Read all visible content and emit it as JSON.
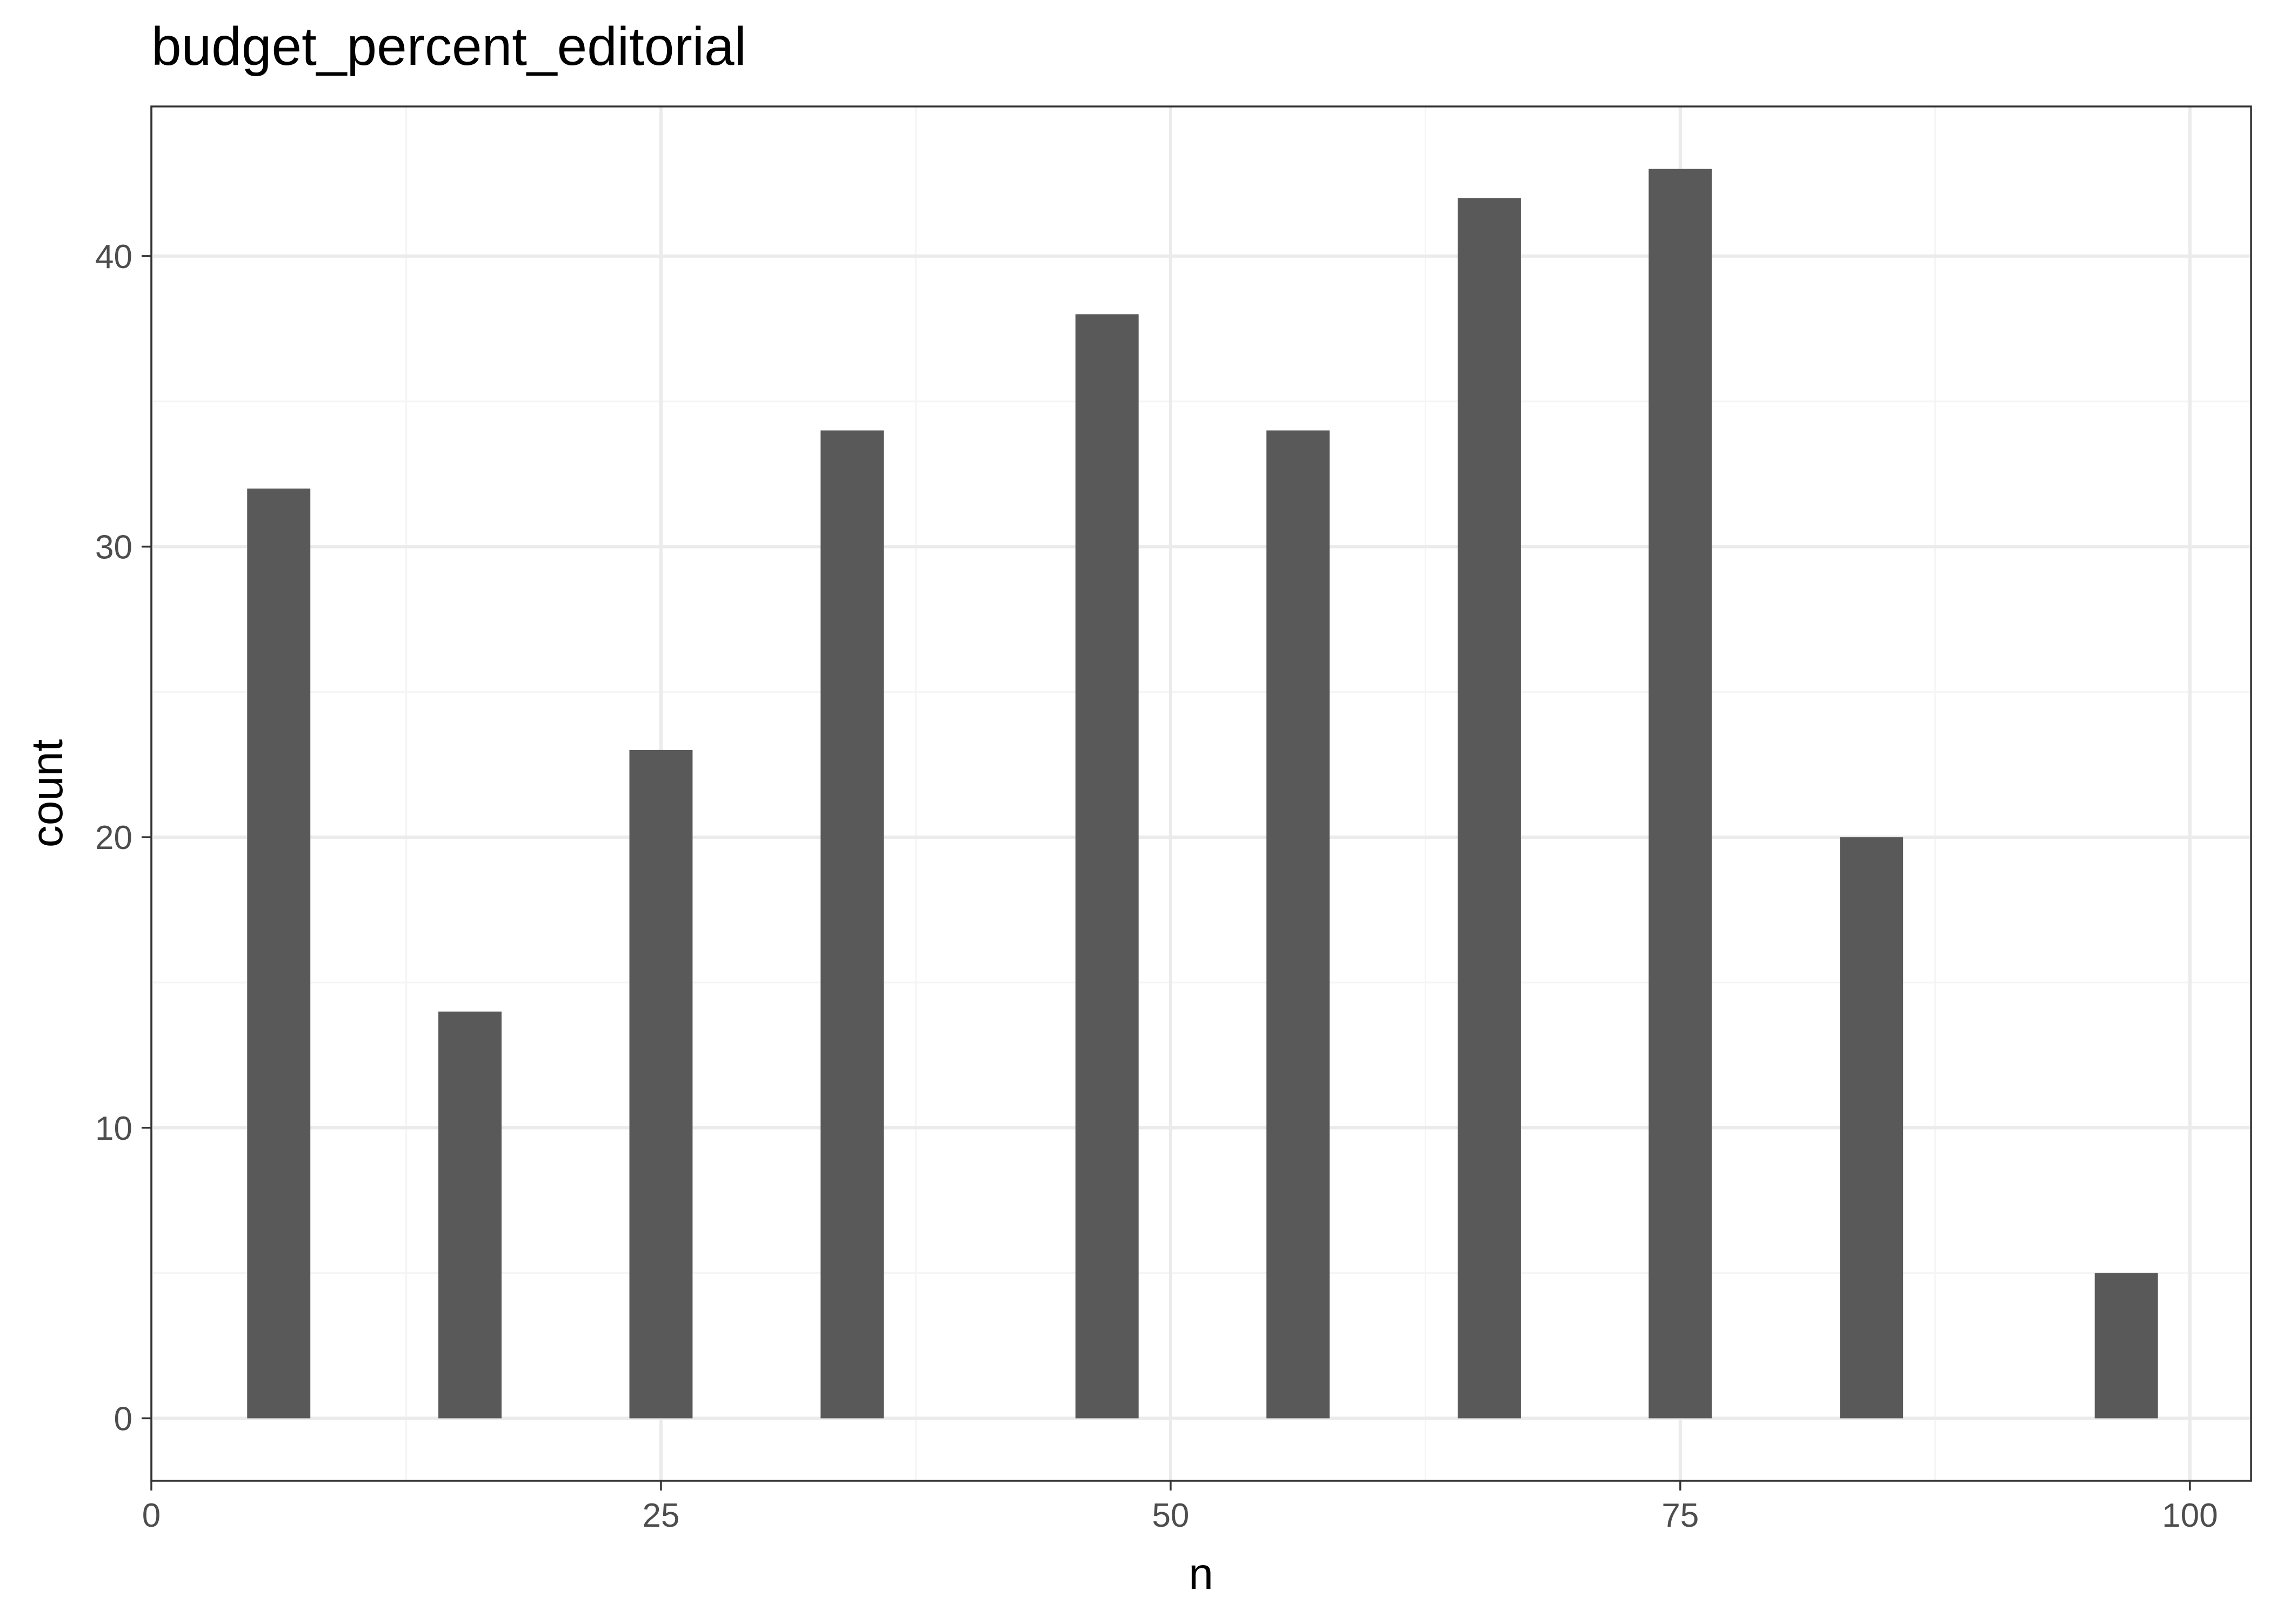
{
  "chart_data": {
    "type": "bar",
    "title": "budget_percent_editorial",
    "xlabel": "n",
    "ylabel": "count",
    "x_ticks": [
      "0",
      "25",
      "50",
      "75",
      "100"
    ],
    "y_ticks": [
      "0",
      "10",
      "20",
      "30",
      "40"
    ],
    "xlim": [
      0,
      103
    ],
    "ylim": [
      -2.15,
      45.15
    ],
    "bar_width": 3.1,
    "x": [
      6.25,
      15.63,
      25.0,
      34.38,
      46.88,
      56.25,
      65.63,
      75.0,
      84.38,
      96.88
    ],
    "values": [
      32,
      14,
      23,
      34,
      38,
      34,
      42,
      43,
      20,
      5
    ],
    "grid": true,
    "legend": "none",
    "colors": {
      "bar": "#595959",
      "panel_border": "#333333",
      "grid_major": "#ebebeb",
      "grid_minor": "#f5f5f5",
      "tick_label": "#4d4d4d"
    }
  }
}
